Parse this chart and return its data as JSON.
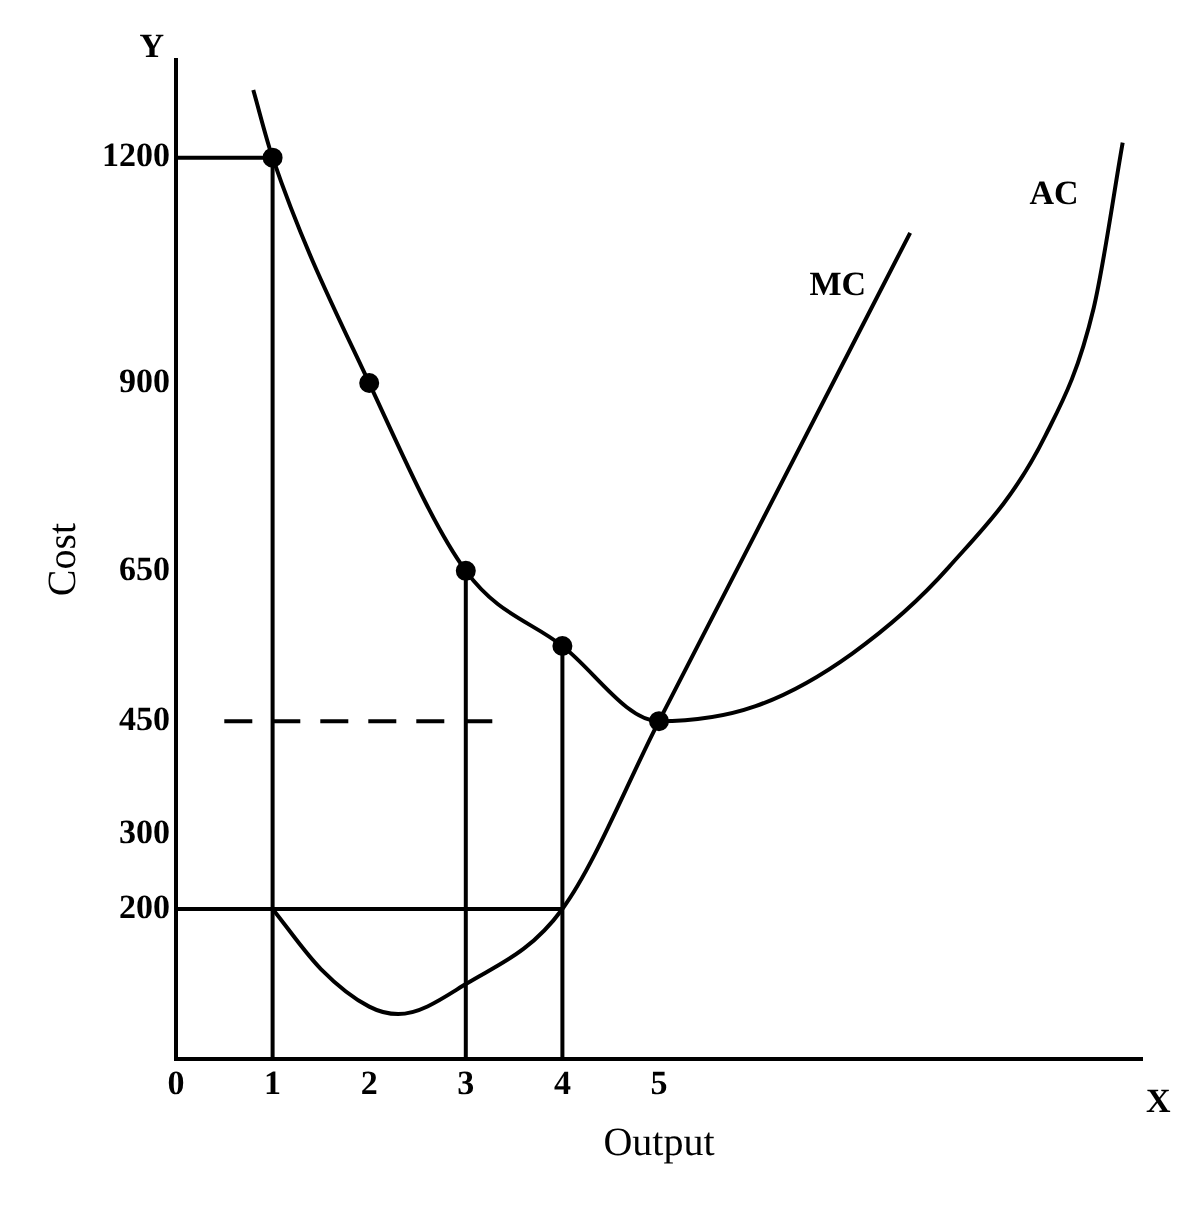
{
  "chart_data": {
    "type": "line",
    "xlabel": "Output",
    "ylabel": "Cost",
    "xlim": [
      0,
      10
    ],
    "ylim": [
      0,
      1330
    ],
    "xticks": [
      0,
      1,
      2,
      3,
      4,
      5
    ],
    "yticks": [
      200,
      300,
      450,
      650,
      900,
      1200
    ],
    "grid": false,
    "legend": false,
    "marker": "none",
    "annotations": [
      "X",
      "Y"
    ],
    "series": [
      {
        "name": "AC",
        "color": "#000000",
        "x": [
          0.8,
          1,
          2,
          3,
          4,
          5,
          6,
          7,
          8,
          9,
          9.5,
          9.8
        ],
        "values": [
          1290,
          1200,
          900,
          650,
          550,
          450,
          470,
          540,
          655,
          830,
          1000,
          1220
        ]
      },
      {
        "name": "MC",
        "color": "#000000",
        "x": [
          1,
          1.5,
          2,
          2.3,
          3,
          4,
          5,
          6,
          7,
          7.6
        ],
        "values": [
          200,
          120,
          70,
          60,
          100,
          200,
          450,
          700,
          950,
          1100
        ]
      },
      {
        "type": "scatter",
        "color": "#000000",
        "marker": "circle",
        "x": [
          1,
          2,
          3,
          4,
          5
        ],
        "values": [
          1200,
          900,
          650,
          550,
          450
        ]
      },
      {
        "color": "#000000",
        "x": [
          0,
          1,
          1
        ],
        "values": [
          1200,
          1200,
          0
        ]
      },
      {
        "color": "#000000",
        "x": [
          3,
          3
        ],
        "values": [
          650,
          0
        ]
      },
      {
        "color": "#000000",
        "x": [
          4,
          4
        ],
        "values": [
          550,
          0
        ]
      },
      {
        "color": "#000000",
        "x": [
          0,
          4
        ],
        "values": [
          200,
          200
        ]
      },
      {
        "color": "#000000",
        "line_style": "dashed",
        "x": [
          0.5,
          3.3
        ],
        "values": [
          450,
          450
        ]
      }
    ]
  }
}
